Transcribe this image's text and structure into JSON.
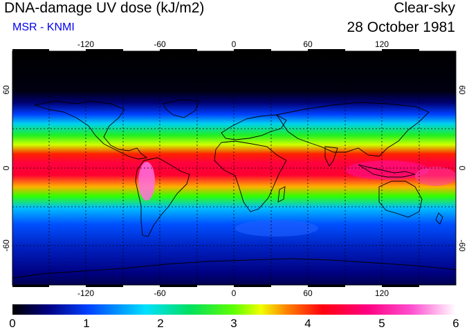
{
  "header": {
    "title": "DNA-damage UV dose (kJ/m2)",
    "source": "MSR - KNMI",
    "condition": "Clear-sky",
    "date": "28 October 1981"
  },
  "map": {
    "projection": "equirectangular",
    "lon_range": [
      -180,
      180
    ],
    "lat_range": [
      -90,
      90
    ],
    "lon_ticks": [
      "-120",
      "-60",
      "0",
      "60",
      "120"
    ],
    "lat_ticks_left": [
      "60",
      "0",
      "-60"
    ],
    "lat_ticks_right": [
      "60",
      "0",
      "-60"
    ],
    "grid": "dotted every 30 degrees",
    "features": [
      "coastlines",
      "gridlines"
    ]
  },
  "colorbar": {
    "min": 0,
    "max": 6,
    "labels": [
      "0",
      "1",
      "2",
      "3",
      "4",
      "5",
      "6"
    ],
    "colors": [
      "#000000",
      "#0000a0",
      "#0060ff",
      "#00d0ff",
      "#00e080",
      "#30ff00",
      "#d0ff00",
      "#ffd000",
      "#ff5000",
      "#ff0020",
      "#ff0080",
      "#ff40c0",
      "#ff90f0",
      "#ffffff"
    ]
  },
  "colors": {
    "source_text": "#0000ee",
    "text": "#000000"
  }
}
